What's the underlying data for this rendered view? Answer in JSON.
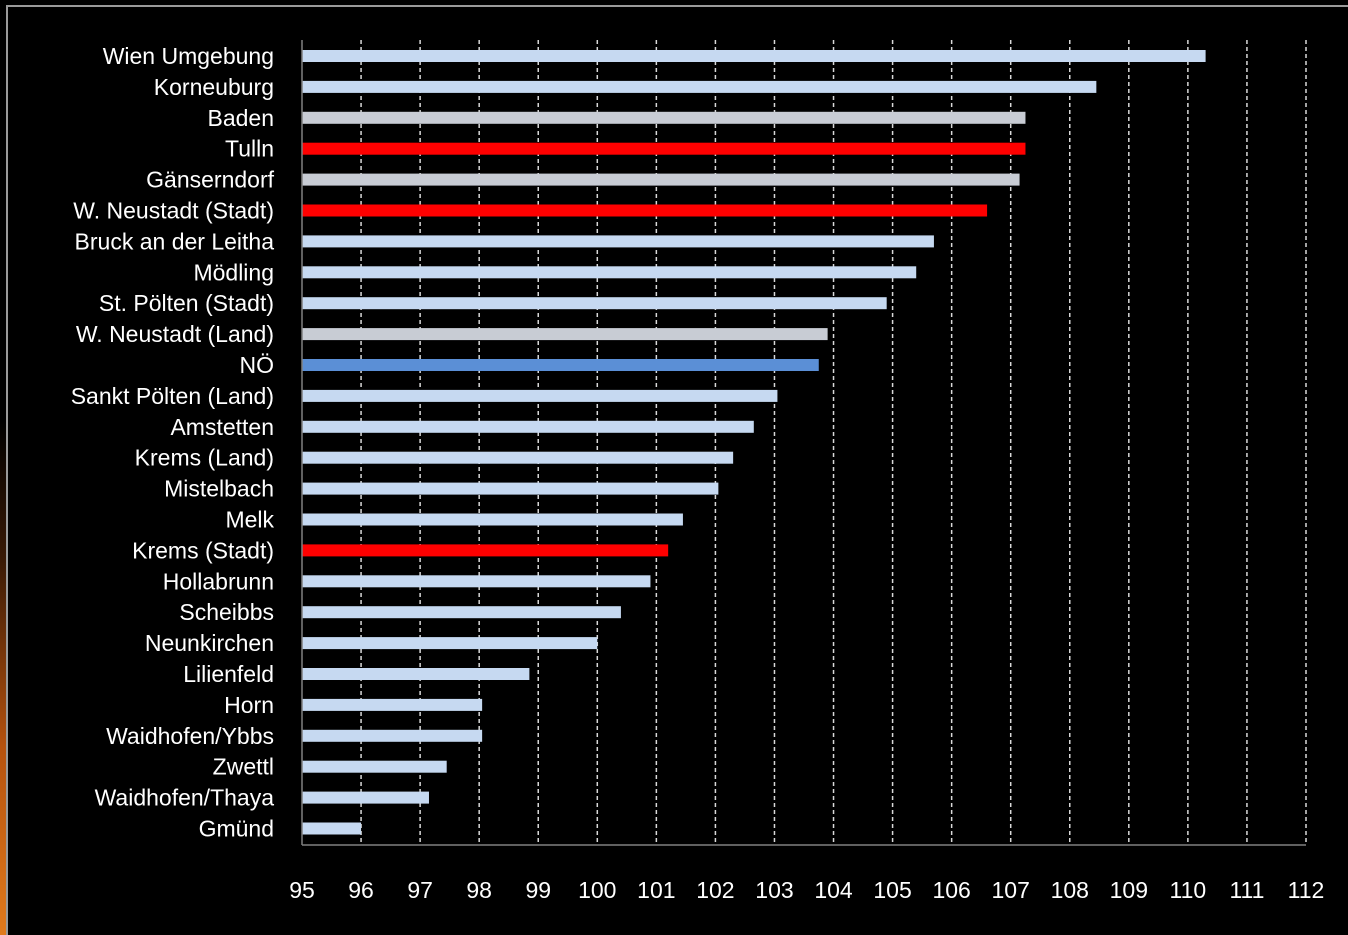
{
  "chart_data": {
    "type": "bar",
    "orientation": "horizontal",
    "title": "",
    "xlabel": "",
    "ylabel": "",
    "xlim": [
      95,
      112
    ],
    "grid": "vertical-dashed",
    "ticks": [
      "95",
      "96",
      "97",
      "98",
      "99",
      "100",
      "101",
      "102",
      "103",
      "104",
      "105",
      "106",
      "107",
      "108",
      "109",
      "110",
      "111",
      "112"
    ],
    "colors": {
      "default": "#c6d9f1",
      "gray": "#c8ccd4",
      "highlight": "#ff0000",
      "total": "#5b8fd6",
      "grid": "#d9d9d9",
      "axis": "#808080"
    },
    "bars": [
      {
        "label": "Wien Umgebung",
        "value": 110.3,
        "color": "default"
      },
      {
        "label": "Korneuburg",
        "value": 108.45,
        "color": "default"
      },
      {
        "label": "Baden",
        "value": 107.25,
        "color": "gray"
      },
      {
        "label": "Tulln",
        "value": 107.25,
        "color": "highlight"
      },
      {
        "label": "Gänserndorf",
        "value": 107.15,
        "color": "gray"
      },
      {
        "label": "W. Neustadt (Stadt)",
        "value": 106.6,
        "color": "highlight"
      },
      {
        "label": "Bruck an der Leitha",
        "value": 105.7,
        "color": "default"
      },
      {
        "label": "Mödling",
        "value": 105.4,
        "color": "default"
      },
      {
        "label": "St. Pölten (Stadt)",
        "value": 104.9,
        "color": "default"
      },
      {
        "label": "W. Neustadt (Land)",
        "value": 103.9,
        "color": "gray"
      },
      {
        "label": "NÖ",
        "value": 103.75,
        "color": "total"
      },
      {
        "label": "Sankt Pölten (Land)",
        "value": 103.05,
        "color": "default"
      },
      {
        "label": "Amstetten",
        "value": 102.65,
        "color": "default"
      },
      {
        "label": "Krems (Land)",
        "value": 102.3,
        "color": "default"
      },
      {
        "label": "Mistelbach",
        "value": 102.05,
        "color": "default"
      },
      {
        "label": "Melk",
        "value": 101.45,
        "color": "default"
      },
      {
        "label": "Krems (Stadt)",
        "value": 101.2,
        "color": "highlight"
      },
      {
        "label": "Hollabrunn",
        "value": 100.9,
        "color": "default"
      },
      {
        "label": "Scheibbs",
        "value": 100.4,
        "color": "default"
      },
      {
        "label": "Neunkirchen",
        "value": 100.0,
        "color": "default"
      },
      {
        "label": "Lilienfeld",
        "value": 98.85,
        "color": "default"
      },
      {
        "label": "Horn",
        "value": 98.05,
        "color": "default"
      },
      {
        "label": "Waidhofen/Ybbs",
        "value": 98.05,
        "color": "default"
      },
      {
        "label": "Zwettl",
        "value": 97.45,
        "color": "default"
      },
      {
        "label": "Waidhofen/Thaya",
        "value": 97.15,
        "color": "default"
      },
      {
        "label": "Gmünd",
        "value": 96.0,
        "color": "default"
      }
    ]
  }
}
